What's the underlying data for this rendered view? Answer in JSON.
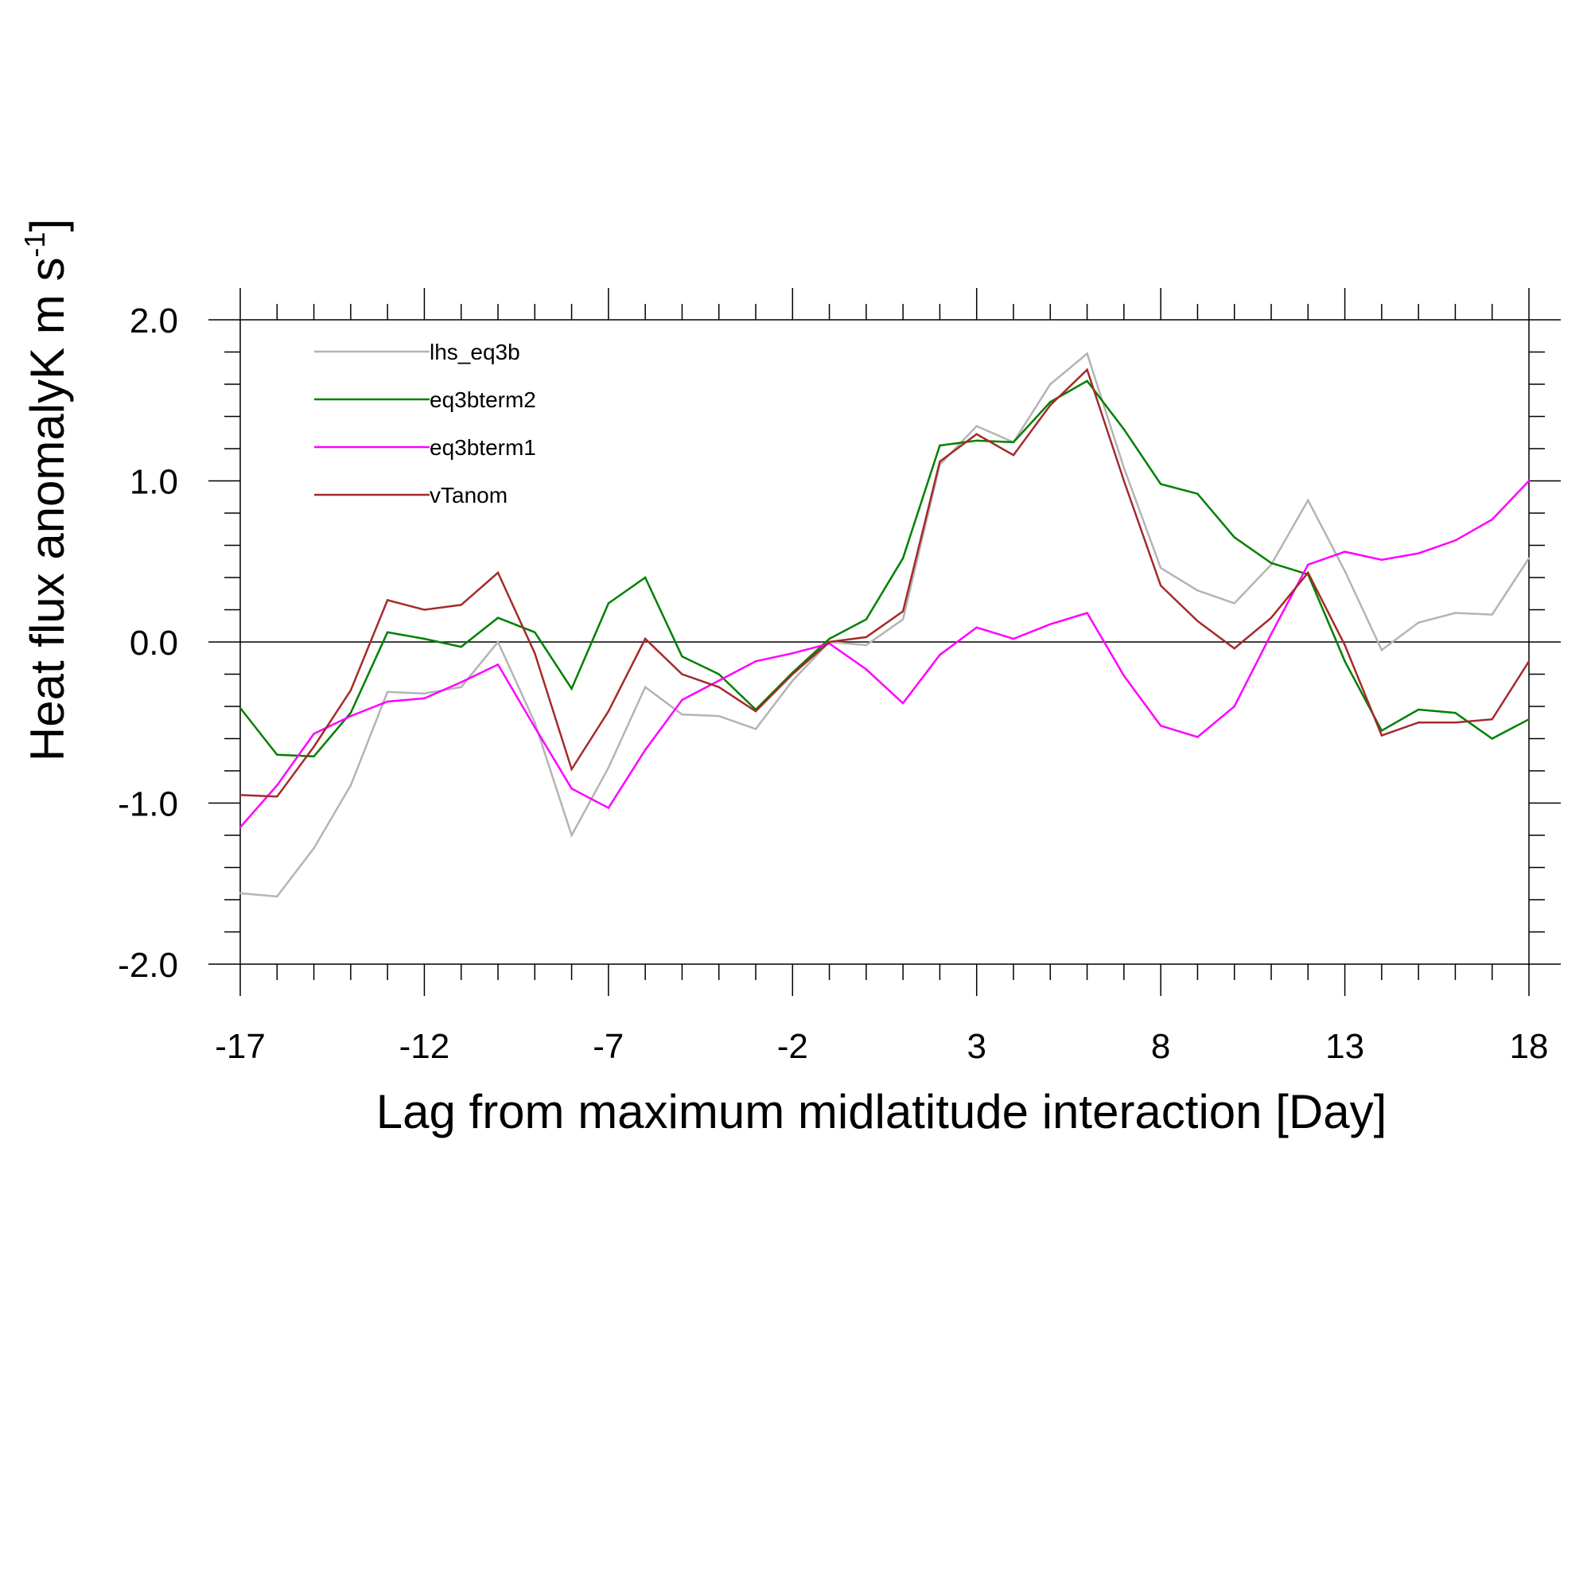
{
  "chart_data": {
    "type": "line",
    "title": "",
    "xlabel": "Lag from maximum midlatitude interaction [Day]",
    "ylabel": {
      "main": "Heat flux anomalyK m s",
      "superscript": "-1",
      "close": "]"
    },
    "xlim": [
      -17,
      18
    ],
    "ylim": [
      -2.0,
      2.0
    ],
    "xticks": [
      -17,
      -12,
      -7,
      -2,
      3,
      8,
      13,
      18
    ],
    "xtick_labels": [
      "-17",
      "-12",
      "-7",
      "-2",
      "3",
      "8",
      "13",
      "18"
    ],
    "yticks": [
      -2.0,
      -1.0,
      0.0,
      1.0,
      2.0
    ],
    "ytick_labels": [
      "-2.0",
      "-1.0",
      "0.0",
      "1.0",
      "2.0"
    ],
    "x_minor_step": 1,
    "y_minor_step": 0.2,
    "zero_line": true,
    "grid": false,
    "legend_position": "top-left",
    "x": [
      -17,
      -16,
      -15,
      -14,
      -13,
      -12,
      -11,
      -10,
      -9,
      -8,
      -7,
      -6,
      -5,
      -4,
      -3,
      -2,
      -1,
      0,
      1,
      2,
      3,
      4,
      5,
      6,
      7,
      8,
      9,
      10,
      11,
      12,
      13,
      14,
      15,
      16,
      17,
      18
    ],
    "series": [
      {
        "name": "lhs_eq3b",
        "color": "#b4b4b4",
        "values": [
          -1.56,
          -1.58,
          -1.28,
          -0.89,
          -0.31,
          -0.32,
          -0.28,
          0.0,
          -0.5,
          -1.2,
          -0.78,
          -0.28,
          -0.45,
          -0.46,
          -0.54,
          -0.24,
          0.0,
          -0.02,
          0.14,
          1.1,
          1.34,
          1.24,
          1.6,
          1.79,
          1.08,
          0.46,
          0.32,
          0.24,
          0.48,
          0.88,
          0.44,
          -0.05,
          0.12,
          0.18,
          0.17,
          0.52
        ]
      },
      {
        "name": "eq3bterm2",
        "color": "#008000",
        "values": [
          -0.41,
          -0.7,
          -0.71,
          -0.44,
          0.06,
          0.02,
          -0.03,
          0.15,
          0.06,
          -0.29,
          0.24,
          0.4,
          -0.09,
          -0.2,
          -0.42,
          -0.19,
          0.02,
          0.14,
          0.52,
          1.22,
          1.25,
          1.24,
          1.49,
          1.62,
          1.32,
          0.98,
          0.92,
          0.65,
          0.49,
          0.42,
          -0.12,
          -0.55,
          -0.42,
          -0.44,
          -0.6,
          -0.48
        ]
      },
      {
        "name": "eq3bterm1",
        "color": "#ff00ff",
        "values": [
          -1.15,
          -0.89,
          -0.57,
          -0.46,
          -0.37,
          -0.35,
          -0.25,
          -0.14,
          -0.53,
          -0.91,
          -1.03,
          -0.67,
          -0.36,
          -0.24,
          -0.12,
          -0.07,
          -0.01,
          -0.17,
          -0.38,
          -0.08,
          0.09,
          0.02,
          0.11,
          0.18,
          -0.21,
          -0.52,
          -0.59,
          -0.4,
          0.05,
          0.48,
          0.56,
          0.51,
          0.55,
          0.63,
          0.76,
          1.0
        ]
      },
      {
        "name": "vTanom",
        "color": "#a52a2a",
        "values": [
          -0.95,
          -0.96,
          -0.65,
          -0.3,
          0.26,
          0.2,
          0.23,
          0.43,
          -0.07,
          -0.79,
          -0.43,
          0.02,
          -0.2,
          -0.28,
          -0.43,
          -0.2,
          0.0,
          0.03,
          0.19,
          1.12,
          1.29,
          1.16,
          1.47,
          1.69,
          1.0,
          0.35,
          0.13,
          -0.04,
          0.15,
          0.43,
          -0.02,
          -0.58,
          -0.5,
          -0.5,
          -0.48,
          -0.12
        ]
      }
    ]
  }
}
